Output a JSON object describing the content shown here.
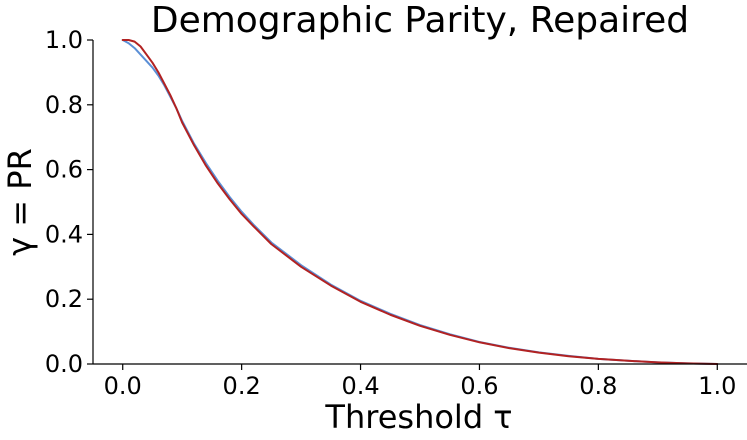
{
  "chart_data": {
    "type": "line",
    "title": "Demographic Parity, Repaired",
    "xlabel": "Threshold τ",
    "ylabel": "γ = PR",
    "xlim": [
      -0.05,
      1.05
    ],
    "ylim": [
      0.0,
      1.0
    ],
    "xticks": [
      0.0,
      0.2,
      0.4,
      0.6,
      0.8,
      1.0
    ],
    "xtick_labels": [
      "0.0",
      "0.2",
      "0.4",
      "0.6",
      "0.8",
      "1.0"
    ],
    "yticks": [
      0.0,
      0.2,
      0.4,
      0.6,
      0.8,
      1.0
    ],
    "ytick_labels": [
      "0.0",
      "0.2",
      "0.4",
      "0.6",
      "0.8",
      "1.0"
    ],
    "grid": false,
    "legend": "none",
    "series": [
      {
        "color": "#5b8fd6",
        "x": [
          0.0,
          0.01,
          0.02,
          0.03,
          0.04,
          0.05,
          0.06,
          0.07,
          0.08,
          0.09,
          0.1,
          0.12,
          0.14,
          0.16,
          0.18,
          0.2,
          0.22,
          0.25,
          0.3,
          0.35,
          0.4,
          0.45,
          0.5,
          0.55,
          0.6,
          0.65,
          0.7,
          0.75,
          0.8,
          0.85,
          0.9,
          0.95,
          1.0
        ],
        "y": [
          1.0,
          0.99,
          0.975,
          0.955,
          0.935,
          0.915,
          0.89,
          0.86,
          0.825,
          0.79,
          0.75,
          0.68,
          0.62,
          0.565,
          0.515,
          0.47,
          0.43,
          0.375,
          0.305,
          0.245,
          0.195,
          0.155,
          0.12,
          0.092,
          0.068,
          0.05,
          0.036,
          0.025,
          0.016,
          0.01,
          0.005,
          0.002,
          0.0
        ]
      },
      {
        "color": "#b22222",
        "x": [
          0.0,
          0.01,
          0.02,
          0.03,
          0.04,
          0.05,
          0.06,
          0.07,
          0.08,
          0.09,
          0.1,
          0.12,
          0.14,
          0.16,
          0.18,
          0.2,
          0.22,
          0.25,
          0.3,
          0.35,
          0.4,
          0.45,
          0.5,
          0.55,
          0.6,
          0.65,
          0.7,
          0.75,
          0.8,
          0.85,
          0.9,
          0.95,
          1.0
        ],
        "y": [
          1.0,
          1.0,
          0.995,
          0.98,
          0.955,
          0.93,
          0.9,
          0.865,
          0.83,
          0.79,
          0.745,
          0.675,
          0.612,
          0.557,
          0.508,
          0.463,
          0.425,
          0.37,
          0.3,
          0.242,
          0.192,
          0.152,
          0.118,
          0.09,
          0.067,
          0.049,
          0.035,
          0.024,
          0.016,
          0.01,
          0.005,
          0.002,
          0.0
        ]
      }
    ]
  }
}
